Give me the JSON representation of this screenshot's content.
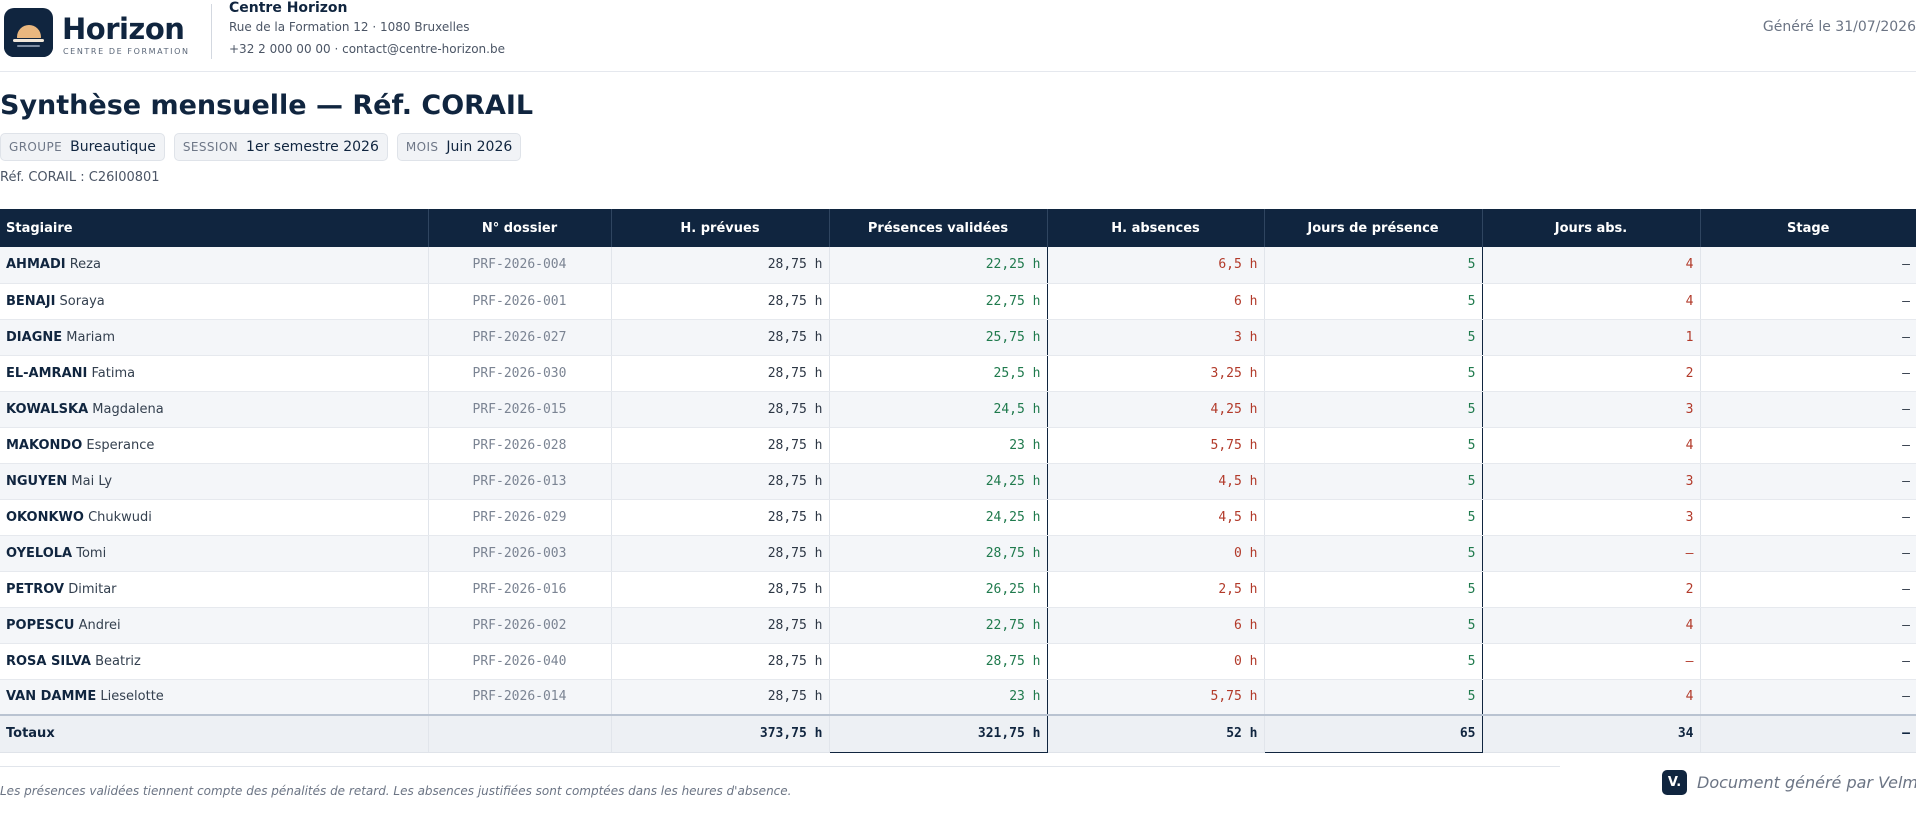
{
  "brand": {
    "name": "Horizon",
    "subtitle": "CENTRE DE FORMATION"
  },
  "org": {
    "name": "Centre Horizon",
    "address": "Rue de la Formation 12 · 1080 Bruxelles",
    "contact": "+32 2 000 00 00 · contact@centre-horizon.be"
  },
  "generated": "Généré le 31/07/2026",
  "title": "Synthèse mensuelle — Réf. CORAIL",
  "chips": [
    {
      "label": "GROUPE",
      "value": "Bureautique"
    },
    {
      "label": "SESSION",
      "value": "1er semestre 2026"
    },
    {
      "label": "MOIS",
      "value": "Juin 2026"
    }
  ],
  "ref": "Réf. CORAIL : C26I00801",
  "table": {
    "headers": [
      "Stagiaire",
      "N° dossier",
      "H. prévues",
      "Présences validées",
      "H. absences",
      "Jours de présence",
      "Jours abs.",
      "Stage"
    ],
    "rows": [
      {
        "last": "AHMADI",
        "first": "Reza",
        "dossier": "PRF-2026-004",
        "prevues": "28,75 h",
        "presences": "22,25 h",
        "absences": "6,5 h",
        "jours": "5",
        "jabs": "4",
        "stage": "–"
      },
      {
        "last": "BENAJI",
        "first": "Soraya",
        "dossier": "PRF-2026-001",
        "prevues": "28,75 h",
        "presences": "22,75 h",
        "absences": "6 h",
        "jours": "5",
        "jabs": "4",
        "stage": "–"
      },
      {
        "last": "DIAGNE",
        "first": "Mariam",
        "dossier": "PRF-2026-027",
        "prevues": "28,75 h",
        "presences": "25,75 h",
        "absences": "3 h",
        "jours": "5",
        "jabs": "1",
        "stage": "–"
      },
      {
        "last": "EL-AMRANI",
        "first": "Fatima",
        "dossier": "PRF-2026-030",
        "prevues": "28,75 h",
        "presences": "25,5 h",
        "absences": "3,25 h",
        "jours": "5",
        "jabs": "2",
        "stage": "–"
      },
      {
        "last": "KOWALSKA",
        "first": "Magdalena",
        "dossier": "PRF-2026-015",
        "prevues": "28,75 h",
        "presences": "24,5 h",
        "absences": "4,25 h",
        "jours": "5",
        "jabs": "3",
        "stage": "–"
      },
      {
        "last": "MAKONDO",
        "first": "Esperance",
        "dossier": "PRF-2026-028",
        "prevues": "28,75 h",
        "presences": "23 h",
        "absences": "5,75 h",
        "jours": "5",
        "jabs": "4",
        "stage": "–"
      },
      {
        "last": "NGUYEN",
        "first": "Mai Ly",
        "dossier": "PRF-2026-013",
        "prevues": "28,75 h",
        "presences": "24,25 h",
        "absences": "4,5 h",
        "jours": "5",
        "jabs": "3",
        "stage": "–"
      },
      {
        "last": "OKONKWO",
        "first": "Chukwudi",
        "dossier": "PRF-2026-029",
        "prevues": "28,75 h",
        "presences": "24,25 h",
        "absences": "4,5 h",
        "jours": "5",
        "jabs": "3",
        "stage": "–"
      },
      {
        "last": "OYELOLA",
        "first": "Tomi",
        "dossier": "PRF-2026-003",
        "prevues": "28,75 h",
        "presences": "28,75 h",
        "absences": "0 h",
        "jours": "5",
        "jabs": "–",
        "stage": "–"
      },
      {
        "last": "PETROV",
        "first": "Dimitar",
        "dossier": "PRF-2026-016",
        "prevues": "28,75 h",
        "presences": "26,25 h",
        "absences": "2,5 h",
        "jours": "5",
        "jabs": "2",
        "stage": "–"
      },
      {
        "last": "POPESCU",
        "first": "Andrei",
        "dossier": "PRF-2026-002",
        "prevues": "28,75 h",
        "presences": "22,75 h",
        "absences": "6 h",
        "jours": "5",
        "jabs": "4",
        "stage": "–"
      },
      {
        "last": "ROSA SILVA",
        "first": "Beatriz",
        "dossier": "PRF-2026-040",
        "prevues": "28,75 h",
        "presences": "28,75 h",
        "absences": "0 h",
        "jours": "5",
        "jabs": "–",
        "stage": "–"
      },
      {
        "last": "VAN DAMME",
        "first": "Lieselotte",
        "dossier": "PRF-2026-014",
        "prevues": "28,75 h",
        "presences": "23 h",
        "absences": "5,75 h",
        "jours": "5",
        "jabs": "4",
        "stage": "–"
      }
    ],
    "totals": {
      "label": "Totaux",
      "prevues": "373,75 h",
      "presences": "321,75 h",
      "absences": "52 h",
      "jours": "65",
      "jabs": "34",
      "stage": "–"
    }
  },
  "footer": {
    "note": "Les présences validées tiennent compte des pénalités de retard. Les absences justifiées sont comptées dans les heures d'absence.",
    "badge": "V.",
    "generated_by": "Document généré par Velmo"
  }
}
